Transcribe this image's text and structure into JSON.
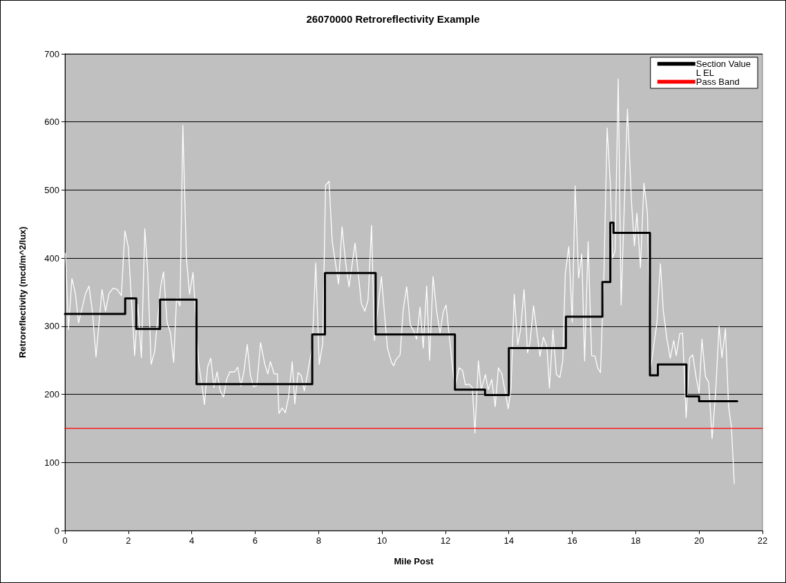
{
  "chart_data": {
    "type": "line",
    "title": "26070000 Retroreflectivity Example",
    "xlabel": "Mile Post",
    "ylabel": "Retroreflectivity (mcd/m^2/lux)",
    "xlim": [
      0,
      22
    ],
    "xticks": [
      0,
      2,
      4,
      6,
      8,
      10,
      12,
      14,
      16,
      18,
      20,
      22
    ],
    "ylim": [
      0,
      700
    ],
    "yticks": [
      0,
      100,
      200,
      300,
      400,
      500,
      600,
      700
    ],
    "grid": "y",
    "legend": "top right",
    "marker": "none",
    "line_style": "solid",
    "series": [
      {
        "name": "Section Value",
        "type": "step",
        "color": "#000000",
        "x": [
          0,
          1.9,
          2.25,
          3.0,
          4.15,
          7.8,
          8.2,
          9.8,
          12.3,
          13.25,
          14.0,
          15.8,
          16.95,
          17.2,
          17.3,
          18.45,
          18.7,
          19.6,
          20.0,
          21.2
        ],
        "values": [
          318,
          341,
          296,
          339,
          215,
          288,
          378,
          288,
          207,
          199,
          268,
          314,
          365,
          452,
          437,
          228,
          244,
          197,
          190,
          190
        ]
      },
      {
        "name": "L EL",
        "color": "#ffffff",
        "x": [
          0.02,
          0.11,
          0.22,
          0.33,
          0.43,
          0.65,
          0.76,
          0.87,
          0.98,
          1.17,
          1.28,
          1.39,
          1.52,
          1.65,
          1.78,
          1.89,
          2.0,
          2.2,
          2.3,
          2.41,
          2.52,
          2.61,
          2.72,
          2.83,
          3.02,
          3.11,
          3.22,
          3.33,
          3.43,
          3.52,
          3.63,
          3.72,
          3.83,
          3.93,
          4.04,
          4.22,
          4.3,
          4.4,
          4.5,
          4.6,
          4.7,
          4.8,
          4.9,
          5.0,
          5.1,
          5.2,
          5.35,
          5.45,
          5.55,
          5.65,
          5.75,
          5.85,
          5.95,
          6.05,
          6.17,
          6.3,
          6.4,
          6.48,
          6.6,
          6.7,
          6.75,
          6.85,
          6.95,
          7.05,
          7.17,
          7.25,
          7.35,
          7.45,
          7.55,
          7.65,
          7.8,
          7.91,
          8.02,
          8.13,
          8.22,
          8.33,
          8.43,
          8.63,
          8.74,
          8.85,
          8.96,
          9.15,
          9.35,
          9.46,
          9.56,
          9.67,
          9.76,
          9.98,
          10.17,
          10.3,
          10.37,
          10.43,
          10.57,
          10.67,
          10.78,
          10.89,
          11.0,
          11.09,
          11.2,
          11.3,
          11.41,
          11.5,
          11.61,
          11.72,
          11.83,
          11.93,
          12.02,
          12.22,
          12.3,
          12.43,
          12.54,
          12.63,
          12.74,
          12.85,
          12.93,
          13.04,
          13.13,
          13.26,
          13.35,
          13.46,
          13.57,
          13.67,
          13.78,
          13.98,
          14.07,
          14.17,
          14.28,
          14.37,
          14.48,
          14.59,
          14.67,
          14.78,
          14.98,
          15.09,
          15.2,
          15.28,
          15.39,
          15.5,
          15.61,
          15.7,
          15.78,
          15.89,
          16.0,
          16.09,
          16.2,
          16.3,
          16.39,
          16.5,
          16.61,
          16.72,
          16.8,
          16.89,
          17.0,
          17.1,
          17.2,
          17.27,
          17.35,
          17.45,
          17.54,
          17.74,
          17.87,
          17.96,
          18.04,
          18.15,
          18.26,
          18.37,
          18.48,
          18.59,
          18.67,
          18.78,
          18.87,
          18.98,
          19.09,
          19.2,
          19.28,
          19.39,
          19.48,
          19.59,
          19.7,
          19.8,
          19.91,
          20.0,
          20.09,
          20.2,
          20.3,
          20.41,
          20.52,
          20.63,
          20.72,
          20.83,
          20.93,
          21.02,
          21.11
        ],
        "values": [
          407,
          295,
          370,
          348,
          305,
          348,
          359,
          320,
          255,
          354,
          322,
          348,
          356,
          354,
          345,
          440,
          416,
          257,
          332,
          254,
          443,
          381,
          244,
          263,
          358,
          380,
          306,
          290,
          247,
          341,
          330,
          595,
          401,
          347,
          379,
          245,
          220,
          185,
          240,
          253,
          210,
          233,
          205,
          196,
          222,
          233,
          233,
          240,
          212,
          235,
          273,
          228,
          211,
          213,
          276,
          245,
          230,
          248,
          230,
          230,
          172,
          180,
          173,
          195,
          248,
          186,
          232,
          228,
          205,
          230,
          270,
          393,
          244,
          275,
          507,
          513,
          424,
          362,
          446,
          394,
          358,
          422,
          333,
          322,
          339,
          448,
          279,
          373,
          268,
          247,
          242,
          250,
          258,
          325,
          358,
          302,
          293,
          281,
          328,
          268,
          359,
          250,
          373,
          323,
          290,
          321,
          331,
          242,
          210,
          239,
          235,
          214,
          215,
          210,
          143,
          249,
          207,
          229,
          207,
          222,
          182,
          239,
          230,
          179,
          209,
          347,
          273,
          295,
          354,
          261,
          277,
          330,
          256,
          284,
          270,
          209,
          295,
          229,
          225,
          249,
          377,
          417,
          306,
          506,
          371,
          406,
          249,
          424,
          257,
          256,
          239,
          232,
          377,
          591,
          510,
          400,
          410,
          663,
          331,
          619,
          481,
          418,
          466,
          386,
          510,
          466,
          240,
          279,
          305,
          392,
          323,
          283,
          253,
          279,
          257,
          289,
          290,
          166,
          253,
          258,
          224,
          202,
          281,
          226,
          218,
          135,
          202,
          300,
          254,
          296,
          182,
          152,
          69
        ]
      },
      {
        "name": "Pass Band",
        "color": "#ff0000",
        "x": [
          0,
          22
        ],
        "values": [
          150,
          150
        ]
      }
    ]
  }
}
